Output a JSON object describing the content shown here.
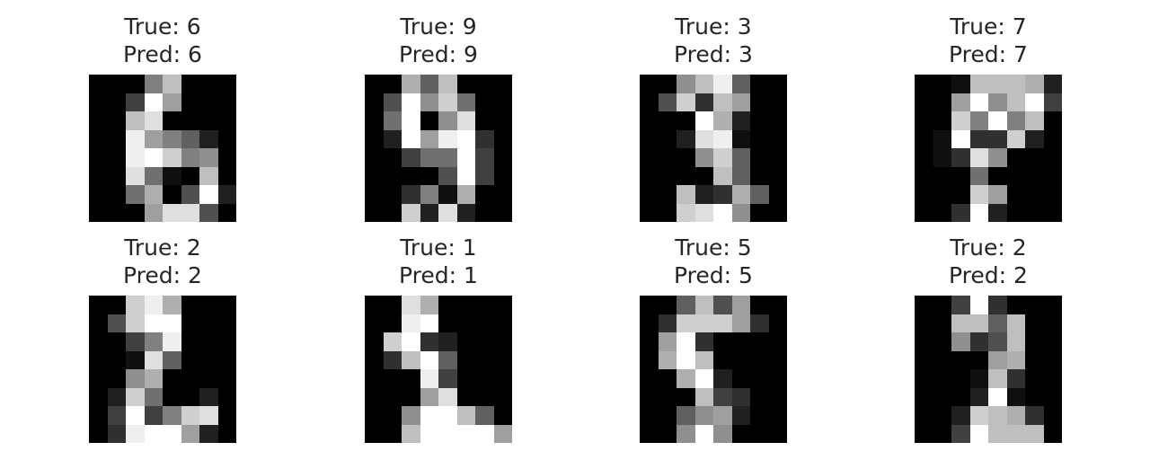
{
  "figure": {
    "panels": [
      {
        "true_label": "True: 6",
        "pred_label": "Pred: 6",
        "pixels": [
          [
            0,
            0,
            0,
            8,
            12,
            0,
            0,
            0
          ],
          [
            0,
            0,
            4,
            16,
            10,
            0,
            0,
            0
          ],
          [
            0,
            0,
            12,
            14,
            0,
            0,
            0,
            0
          ],
          [
            0,
            0,
            15,
            10,
            8,
            6,
            2,
            0
          ],
          [
            0,
            0,
            15,
            16,
            13,
            8,
            9,
            0
          ],
          [
            0,
            0,
            14,
            7,
            1,
            0,
            12,
            0
          ],
          [
            0,
            0,
            7,
            11,
            0,
            5,
            16,
            2
          ],
          [
            0,
            0,
            0,
            10,
            14,
            14,
            5,
            0
          ]
        ]
      },
      {
        "true_label": "True: 9",
        "pred_label": "Pred: 9",
        "pixels": [
          [
            0,
            0,
            11,
            6,
            12,
            0,
            0,
            0
          ],
          [
            0,
            5,
            16,
            9,
            13,
            7,
            0,
            0
          ],
          [
            0,
            7,
            16,
            0,
            9,
            14,
            0,
            0
          ],
          [
            0,
            2,
            16,
            10,
            15,
            16,
            3,
            0
          ],
          [
            0,
            0,
            4,
            7,
            7,
            16,
            4,
            0
          ],
          [
            0,
            0,
            0,
            0,
            5,
            16,
            4,
            0
          ],
          [
            0,
            0,
            3,
            8,
            1,
            11,
            0,
            0
          ],
          [
            0,
            0,
            13,
            2,
            14,
            2,
            0,
            0
          ]
        ]
      },
      {
        "true_label": "True: 3",
        "pred_label": "Pred: 3",
        "pixels": [
          [
            0,
            0,
            9,
            12,
            15,
            6,
            0,
            0
          ],
          [
            0,
            5,
            13,
            3,
            12,
            10,
            0,
            0
          ],
          [
            0,
            0,
            0,
            16,
            11,
            2,
            0,
            0
          ],
          [
            0,
            0,
            2,
            14,
            15,
            1,
            0,
            0
          ],
          [
            0,
            0,
            0,
            9,
            13,
            6,
            0,
            0
          ],
          [
            0,
            0,
            0,
            0,
            12,
            6,
            0,
            0
          ],
          [
            0,
            0,
            12,
            2,
            3,
            11,
            6,
            0
          ],
          [
            0,
            0,
            13,
            14,
            16,
            9,
            0,
            0
          ]
        ]
      },
      {
        "true_label": "True: 7",
        "pred_label": "Pred: 7",
        "pixels": [
          [
            0,
            0,
            1,
            12,
            12,
            12,
            11,
            2
          ],
          [
            0,
            0,
            10,
            16,
            9,
            12,
            16,
            4
          ],
          [
            0,
            0,
            13,
            8,
            16,
            8,
            12,
            0
          ],
          [
            0,
            1,
            16,
            3,
            3,
            13,
            2,
            0
          ],
          [
            0,
            1,
            3,
            14,
            9,
            0,
            0,
            0
          ],
          [
            0,
            0,
            0,
            7,
            0,
            0,
            0,
            0
          ],
          [
            0,
            0,
            0,
            13,
            10,
            0,
            0,
            0
          ],
          [
            0,
            0,
            3,
            16,
            2,
            0,
            0,
            0
          ]
        ]
      },
      {
        "true_label": "True: 2",
        "pred_label": "Pred: 2",
        "pixels": [
          [
            0,
            0,
            13,
            15,
            11,
            0,
            0,
            0
          ],
          [
            0,
            5,
            13,
            16,
            16,
            0,
            0,
            0
          ],
          [
            0,
            0,
            4,
            8,
            15,
            0,
            0,
            0
          ],
          [
            0,
            0,
            1,
            14,
            6,
            0,
            0,
            0
          ],
          [
            0,
            0,
            9,
            11,
            0,
            0,
            0,
            0
          ],
          [
            0,
            2,
            13,
            7,
            0,
            0,
            2,
            0
          ],
          [
            0,
            4,
            16,
            4,
            8,
            13,
            14,
            0
          ],
          [
            0,
            3,
            15,
            16,
            16,
            10,
            2,
            0
          ]
        ]
      },
      {
        "true_label": "True: 1",
        "pred_label": "Pred: 1",
        "pixels": [
          [
            0,
            0,
            14,
            11,
            0,
            0,
            0,
            0
          ],
          [
            0,
            0,
            15,
            16,
            0,
            0,
            0,
            0
          ],
          [
            0,
            13,
            16,
            3,
            2,
            0,
            0,
            0
          ],
          [
            0,
            3,
            12,
            16,
            6,
            0,
            0,
            0
          ],
          [
            0,
            0,
            0,
            15,
            4,
            0,
            0,
            0
          ],
          [
            0,
            0,
            0,
            10,
            14,
            0,
            0,
            0
          ],
          [
            0,
            0,
            9,
            16,
            16,
            12,
            6,
            0
          ],
          [
            0,
            0,
            12,
            16,
            16,
            16,
            16,
            10
          ]
        ]
      },
      {
        "true_label": "True: 5",
        "pred_label": "Pred: 5",
        "pixels": [
          [
            0,
            0,
            6,
            12,
            5,
            10,
            0,
            0
          ],
          [
            0,
            3,
            13,
            13,
            13,
            10,
            3,
            0
          ],
          [
            0,
            10,
            16,
            3,
            0,
            0,
            0,
            0
          ],
          [
            0,
            11,
            16,
            12,
            0,
            0,
            0,
            0
          ],
          [
            0,
            0,
            11,
            16,
            2,
            0,
            0,
            0
          ],
          [
            0,
            0,
            0,
            12,
            4,
            3,
            0,
            0
          ],
          [
            0,
            0,
            6,
            9,
            10,
            2,
            0,
            0
          ],
          [
            0,
            0,
            9,
            16,
            9,
            0,
            0,
            0
          ]
        ]
      },
      {
        "true_label": "True: 2",
        "pred_label": "Pred: 2",
        "pixels": [
          [
            0,
            0,
            4,
            16,
            3,
            0,
            0,
            0
          ],
          [
            0,
            0,
            12,
            12,
            6,
            12,
            0,
            0
          ],
          [
            0,
            0,
            9,
            3,
            5,
            12,
            0,
            0
          ],
          [
            0,
            0,
            0,
            0,
            10,
            11,
            0,
            0
          ],
          [
            0,
            0,
            0,
            1,
            12,
            3,
            0,
            0
          ],
          [
            0,
            0,
            0,
            2,
            16,
            1,
            0,
            0
          ],
          [
            0,
            0,
            2,
            13,
            12,
            11,
            3,
            0
          ],
          [
            0,
            0,
            4,
            16,
            12,
            12,
            12,
            0
          ]
        ]
      }
    ]
  }
}
